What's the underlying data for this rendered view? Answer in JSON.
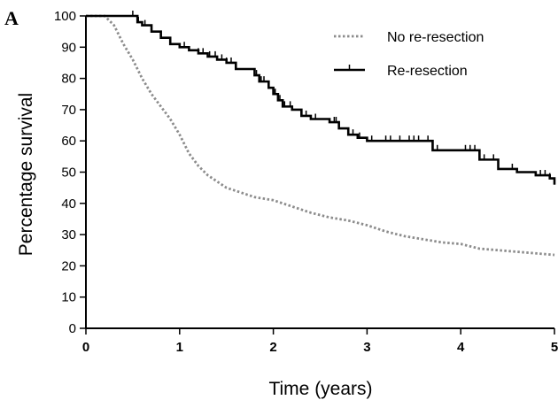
{
  "panel_label": "A",
  "chart_data": {
    "type": "line",
    "xlabel": "Time (years)",
    "ylabel": "Percentage survival",
    "xlim": [
      0,
      5
    ],
    "ylim": [
      0,
      100
    ],
    "xticks": [
      0,
      1,
      2,
      3,
      4,
      5
    ],
    "yticks": [
      0,
      10,
      20,
      30,
      40,
      50,
      60,
      70,
      80,
      90,
      100
    ],
    "grid": false,
    "legend_position": "top-right",
    "series": [
      {
        "name": "No re-resection",
        "color": "#8c8c8c",
        "style": "dotted",
        "step": false,
        "x": [
          0,
          0.2,
          0.3,
          0.4,
          0.5,
          0.6,
          0.7,
          0.8,
          0.9,
          1.0,
          1.1,
          1.2,
          1.3,
          1.4,
          1.5,
          1.6,
          1.7,
          1.8,
          1.9,
          2.0,
          2.2,
          2.4,
          2.6,
          2.8,
          3.0,
          3.2,
          3.4,
          3.6,
          3.8,
          4.0,
          4.2,
          4.4,
          4.6,
          4.8,
          5.0
        ],
        "y": [
          100,
          100,
          97,
          91,
          86,
          80,
          75,
          71,
          67,
          62,
          56,
          52,
          49,
          47,
          45,
          44,
          43,
          42,
          41.5,
          41,
          39,
          37,
          35.5,
          34.5,
          33,
          31,
          29.5,
          28.5,
          27.5,
          27,
          25.5,
          25,
          24.5,
          24,
          23.5
        ]
      },
      {
        "name": "Re-resection",
        "color": "#000000",
        "style": "solid",
        "step": true,
        "x": [
          0,
          0.5,
          0.55,
          0.6,
          0.7,
          0.8,
          0.9,
          1.0,
          1.1,
          1.2,
          1.3,
          1.4,
          1.5,
          1.6,
          1.8,
          1.85,
          1.95,
          2.0,
          2.05,
          2.1,
          2.2,
          2.3,
          2.4,
          2.6,
          2.7,
          2.8,
          2.9,
          3.0,
          3.1,
          3.6,
          3.7,
          4.1,
          4.2,
          4.4,
          4.6,
          4.8,
          4.95,
          5.0
        ],
        "y": [
          100,
          100,
          98,
          97,
          95,
          93,
          91,
          90,
          89,
          88,
          87,
          86,
          85,
          83,
          81,
          79,
          77,
          75,
          73,
          71,
          70,
          68,
          67,
          66,
          64,
          62,
          61,
          60,
          60,
          60,
          57,
          57,
          54,
          51,
          50,
          49,
          48,
          46
        ],
        "censor_x": [
          0.5,
          0.56,
          0.63,
          0.7,
          0.9,
          1.05,
          1.2,
          1.25,
          1.32,
          1.38,
          1.45,
          1.5,
          1.55,
          1.8,
          1.82,
          1.87,
          1.9,
          1.95,
          2.02,
          2.07,
          2.12,
          2.18,
          2.3,
          2.35,
          2.45,
          2.65,
          2.67,
          2.7,
          2.8,
          2.85,
          2.92,
          3.05,
          3.2,
          3.25,
          3.35,
          3.45,
          3.5,
          3.55,
          3.65,
          3.7,
          3.75,
          4.05,
          4.1,
          4.15,
          4.25,
          4.35,
          4.4,
          4.55,
          4.85,
          4.9,
          4.95,
          5.0
        ]
      }
    ]
  }
}
